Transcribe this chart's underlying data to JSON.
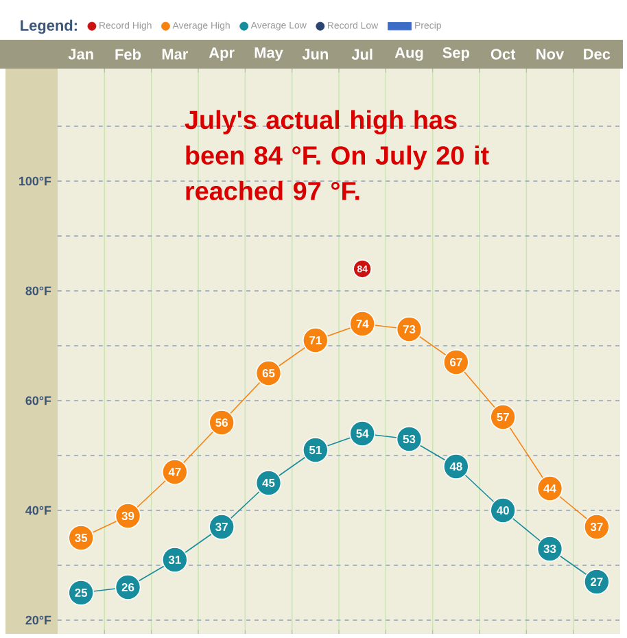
{
  "chart_data": {
    "type": "line",
    "categories": [
      "Jan",
      "Feb",
      "Mar",
      "Apr",
      "May",
      "Jun",
      "Jul",
      "Aug",
      "Sep",
      "Oct",
      "Nov",
      "Dec"
    ],
    "ylim": [
      17.5,
      120.5
    ],
    "yticks": [
      {
        "value": 20,
        "label": "20°F"
      },
      {
        "value": 30,
        "label": null
      },
      {
        "value": 40,
        "label": "40°F"
      },
      {
        "value": 50,
        "label": null
      },
      {
        "value": 60,
        "label": "60°F"
      },
      {
        "value": 70,
        "label": null
      },
      {
        "value": 80,
        "label": "80°F"
      },
      {
        "value": 90,
        "label": null
      },
      {
        "value": 100,
        "label": "100°F"
      },
      {
        "value": 110,
        "label": null
      }
    ],
    "grid": "y",
    "legend": "top",
    "legend_title": "Legend:",
    "marker": "circle",
    "data_labels": true,
    "series": [
      {
        "name": "Record High",
        "color": "#cc1111",
        "values": [
          null,
          null,
          null,
          null,
          null,
          null,
          84,
          null,
          null,
          null,
          null,
          null
        ]
      },
      {
        "name": "Average High",
        "color": "#f7820f",
        "values": [
          35,
          39,
          47,
          56,
          65,
          71,
          74,
          73,
          67,
          57,
          44,
          37
        ]
      },
      {
        "name": "Average Low",
        "color": "#178c9c",
        "values": [
          25,
          26,
          31,
          37,
          45,
          51,
          54,
          53,
          48,
          40,
          33,
          27
        ]
      },
      {
        "name": "Record Low",
        "color": "#2c4470",
        "values": [
          null,
          null,
          null,
          null,
          null,
          null,
          null,
          null,
          null,
          null,
          null,
          null
        ]
      },
      {
        "name": "Precip",
        "type": "bar",
        "color": "#3a6cc8",
        "values": [
          null,
          null,
          null,
          null,
          null,
          null,
          null,
          null,
          null,
          null,
          null,
          null
        ]
      }
    ],
    "annotations": [
      "July's actual high has been 84 °F. On July 20 it reached 97 °F."
    ]
  }
}
